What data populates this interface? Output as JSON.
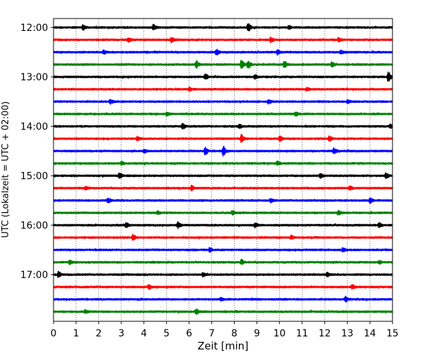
{
  "chart_data": {
    "type": "line",
    "title": "",
    "xlabel": "Zeit  [min]",
    "ylabel": "UTC (Lokalzeit = UTC + 02:00)",
    "xlim": [
      0,
      15
    ],
    "x_ticks": [
      "0",
      "1",
      "2",
      "3",
      "4",
      "5",
      "6",
      "7",
      "8",
      "9",
      "10",
      "11",
      "12",
      "13",
      "14",
      "15"
    ],
    "y_ticks": [
      "12:00",
      "13:00",
      "14:00",
      "15:00",
      "16:00",
      "17:00"
    ],
    "grid": "vertical dotted at each minute",
    "trace_interval_minutes": 15,
    "trace_colors": [
      "#000000",
      "#ff0000",
      "#0000ff",
      "#008000"
    ],
    "series": [
      {
        "start": "12:00",
        "color": "#000000",
        "events": [
          [
            8.6,
            1.0
          ],
          [
            4.4,
            0.6
          ],
          [
            1.3,
            0.5
          ],
          [
            10.4,
            0.4
          ]
        ]
      },
      {
        "start": "12:15",
        "color": "#ff0000",
        "events": [
          [
            5.2,
            0.6
          ],
          [
            3.3,
            0.5
          ],
          [
            9.6,
            0.5
          ],
          [
            12.6,
            0.4
          ]
        ]
      },
      {
        "start": "12:30",
        "color": "#0000ff",
        "events": [
          [
            7.2,
            0.6
          ],
          [
            9.9,
            0.5
          ],
          [
            2.2,
            0.4
          ],
          [
            12.7,
            0.4
          ]
        ]
      },
      {
        "start": "12:45",
        "color": "#008000",
        "events": [
          [
            8.3,
            0.9
          ],
          [
            8.6,
            0.8
          ],
          [
            10.2,
            0.7
          ],
          [
            6.3,
            0.7
          ],
          [
            12.3,
            0.5
          ]
        ]
      },
      {
        "start": "13:00",
        "color": "#000000",
        "events": [
          [
            14.8,
            1.0
          ],
          [
            6.7,
            0.6
          ],
          [
            8.9,
            0.4
          ]
        ]
      },
      {
        "start": "13:15",
        "color": "#ff0000",
        "events": [
          [
            6.0,
            0.4
          ],
          [
            11.2,
            0.3
          ]
        ]
      },
      {
        "start": "13:30",
        "color": "#0000ff",
        "events": [
          [
            2.5,
            0.4
          ],
          [
            9.5,
            0.4
          ],
          [
            13.0,
            0.3
          ]
        ]
      },
      {
        "start": "13:45",
        "color": "#008000",
        "events": [
          [
            5.0,
            0.4
          ],
          [
            10.7,
            0.4
          ]
        ]
      },
      {
        "start": "14:00",
        "color": "#000000",
        "events": [
          [
            5.7,
            0.5
          ],
          [
            14.9,
            0.4
          ],
          [
            8.2,
            0.4
          ]
        ]
      },
      {
        "start": "14:15",
        "color": "#ff0000",
        "events": [
          [
            8.3,
            0.9
          ],
          [
            10.0,
            0.6
          ],
          [
            12.2,
            0.5
          ],
          [
            3.7,
            0.4
          ]
        ]
      },
      {
        "start": "14:30",
        "color": "#0000ff",
        "events": [
          [
            7.5,
            1.0
          ],
          [
            6.7,
            0.8
          ],
          [
            12.4,
            0.5
          ],
          [
            4.0,
            0.4
          ]
        ]
      },
      {
        "start": "14:45",
        "color": "#008000",
        "events": [
          [
            9.9,
            0.4
          ],
          [
            3.0,
            0.3
          ]
        ]
      },
      {
        "start": "15:00",
        "color": "#000000",
        "events": [
          [
            14.7,
            0.6
          ],
          [
            2.9,
            0.6
          ],
          [
            11.8,
            0.4
          ]
        ]
      },
      {
        "start": "15:15",
        "color": "#ff0000",
        "events": [
          [
            6.1,
            0.5
          ],
          [
            13.1,
            0.5
          ],
          [
            1.4,
            0.3
          ]
        ]
      },
      {
        "start": "15:30",
        "color": "#0000ff",
        "events": [
          [
            2.4,
            0.5
          ],
          [
            14.0,
            0.5
          ],
          [
            9.6,
            0.4
          ]
        ]
      },
      {
        "start": "15:45",
        "color": "#008000",
        "events": [
          [
            7.9,
            0.4
          ],
          [
            12.6,
            0.4
          ],
          [
            4.6,
            0.3
          ]
        ]
      },
      {
        "start": "16:00",
        "color": "#000000",
        "events": [
          [
            3.2,
            0.6
          ],
          [
            5.5,
            0.6
          ],
          [
            8.9,
            0.5
          ],
          [
            14.4,
            0.5
          ]
        ]
      },
      {
        "start": "16:15",
        "color": "#ff0000",
        "events": [
          [
            3.5,
            0.7
          ],
          [
            10.5,
            0.4
          ]
        ]
      },
      {
        "start": "16:30",
        "color": "#0000ff",
        "events": [
          [
            6.9,
            0.4
          ],
          [
            12.8,
            0.4
          ]
        ]
      },
      {
        "start": "16:45",
        "color": "#008000",
        "events": [
          [
            8.3,
            0.5
          ],
          [
            0.7,
            0.4
          ],
          [
            14.4,
            0.3
          ]
        ]
      },
      {
        "start": "17:00",
        "color": "#000000",
        "events": [
          [
            0.2,
            0.6
          ],
          [
            6.6,
            0.4
          ],
          [
            12.1,
            0.4
          ]
        ]
      },
      {
        "start": "17:15",
        "color": "#ff0000",
        "events": [
          [
            4.2,
            0.4
          ],
          [
            13.2,
            0.4
          ]
        ]
      },
      {
        "start": "17:30",
        "color": "#0000ff",
        "events": [
          [
            12.9,
            0.5
          ],
          [
            7.4,
            0.3
          ]
        ]
      },
      {
        "start": "17:45",
        "color": "#008000",
        "events": [
          [
            6.3,
            0.5
          ],
          [
            1.4,
            0.3
          ]
        ]
      }
    ]
  }
}
